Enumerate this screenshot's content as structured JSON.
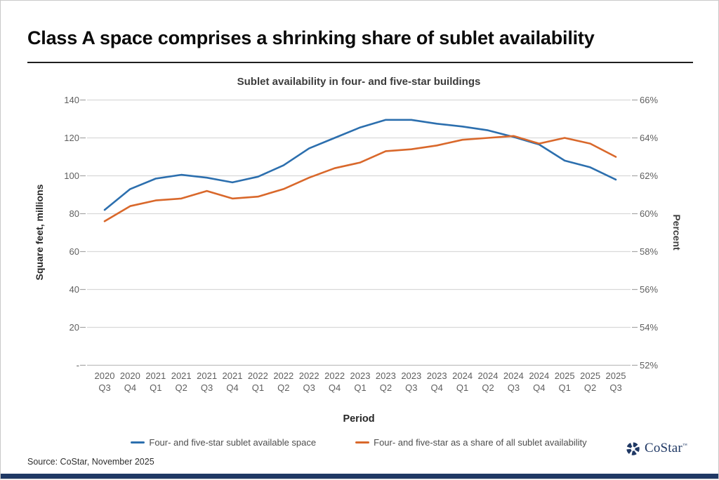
{
  "header": {
    "title": "Class A space comprises a shrinking share of sublet availability"
  },
  "chart_data": {
    "type": "line",
    "title": "Sublet availability in four- and five-star buildings",
    "xlabel": "Period",
    "grid": true,
    "legend_position": "bottom",
    "categories": [
      "2020 Q3",
      "2020 Q4",
      "2021 Q1",
      "2021 Q2",
      "2021 Q3",
      "2021 Q4",
      "2022 Q1",
      "2022 Q2",
      "2022 Q3",
      "2022 Q4",
      "2023 Q1",
      "2023 Q2",
      "2023 Q3",
      "2023 Q4",
      "2024 Q1",
      "2024 Q2",
      "2024 Q3",
      "2024 Q4",
      "2025 Q1",
      "2025 Q2",
      "2025 Q3"
    ],
    "series": [
      {
        "name": "Four- and five-star sublet available space",
        "axis": "left",
        "color": "#2C6FAE",
        "values": [
          82,
          93,
          98.5,
          100.5,
          99,
          96.5,
          99.5,
          105.5,
          114.5,
          120,
          125.5,
          129.5,
          129.5,
          127.5,
          126,
          124,
          120.5,
          116.5,
          108,
          104.5,
          98
        ]
      },
      {
        "name": "Four- and five-star as a share of all sublet availability",
        "axis": "right",
        "color": "#D9682B",
        "values": [
          59.6,
          60.4,
          60.7,
          60.8,
          61.2,
          60.8,
          60.9,
          61.3,
          61.9,
          62.4,
          62.7,
          63.3,
          63.4,
          63.6,
          63.9,
          64.0,
          64.1,
          63.7,
          64.0,
          63.7,
          63.0
        ]
      }
    ],
    "left_axis": {
      "label": "Square feet, millions",
      "range": [
        0,
        140
      ],
      "ticks": [
        140,
        120,
        100,
        80,
        60,
        40,
        20,
        0
      ],
      "tick_labels": [
        "140",
        "120",
        "100",
        "80",
        "60",
        "40",
        "20",
        "-"
      ]
    },
    "right_axis": {
      "label": "Percent",
      "range": [
        52,
        66
      ],
      "ticks": [
        66,
        64,
        62,
        60,
        58,
        56,
        54,
        52
      ],
      "tick_labels": [
        "66%",
        "64%",
        "62%",
        "60%",
        "58%",
        "56%",
        "54%",
        "52%"
      ]
    }
  },
  "footer": {
    "source": "Source: CoStar, November 2025",
    "logo_text": "CoStar",
    "logo_mark": "™",
    "brand_color": "#1F3864"
  }
}
